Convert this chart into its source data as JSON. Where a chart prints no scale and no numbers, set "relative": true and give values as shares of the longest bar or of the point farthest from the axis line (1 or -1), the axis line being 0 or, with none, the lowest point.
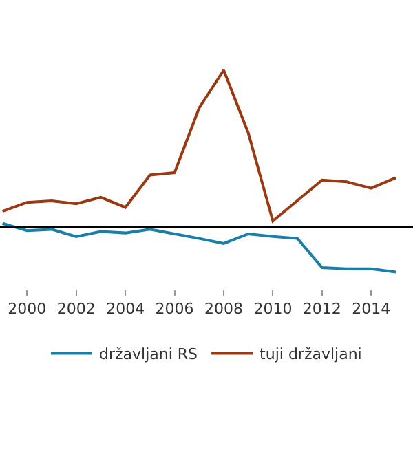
{
  "chart_data": {
    "type": "line",
    "relative": true,
    "x": [
      1999,
      2000,
      2001,
      2002,
      2003,
      2004,
      2005,
      2006,
      2007,
      2008,
      2009,
      2010,
      2011,
      2012,
      2013,
      2014,
      2015
    ],
    "xlim": [
      1998.9,
      2015.7
    ],
    "xticks": [
      2000,
      2002,
      2004,
      2006,
      2008,
      2010,
      2012,
      2014
    ],
    "series": [
      {
        "name": "državljani RS",
        "color": "#1a7fa8",
        "values": [
          0.023,
          -0.023,
          -0.015,
          -0.061,
          -0.029,
          -0.038,
          -0.015,
          -0.044,
          -0.073,
          -0.105,
          -0.044,
          -0.061,
          -0.073,
          -0.259,
          -0.267,
          -0.267,
          -0.288
        ]
      },
      {
        "name": "tuji državljani",
        "color": "#9a3a12",
        "values": [
          0.1,
          0.157,
          0.166,
          0.148,
          0.189,
          0.125,
          0.331,
          0.346,
          0.759,
          1,
          0.599,
          0.038,
          0.169,
          0.299,
          0.288,
          0.247,
          0.314
        ]
      }
    ],
    "legend": "bottom",
    "marker": "none",
    "line_style": "solid"
  }
}
